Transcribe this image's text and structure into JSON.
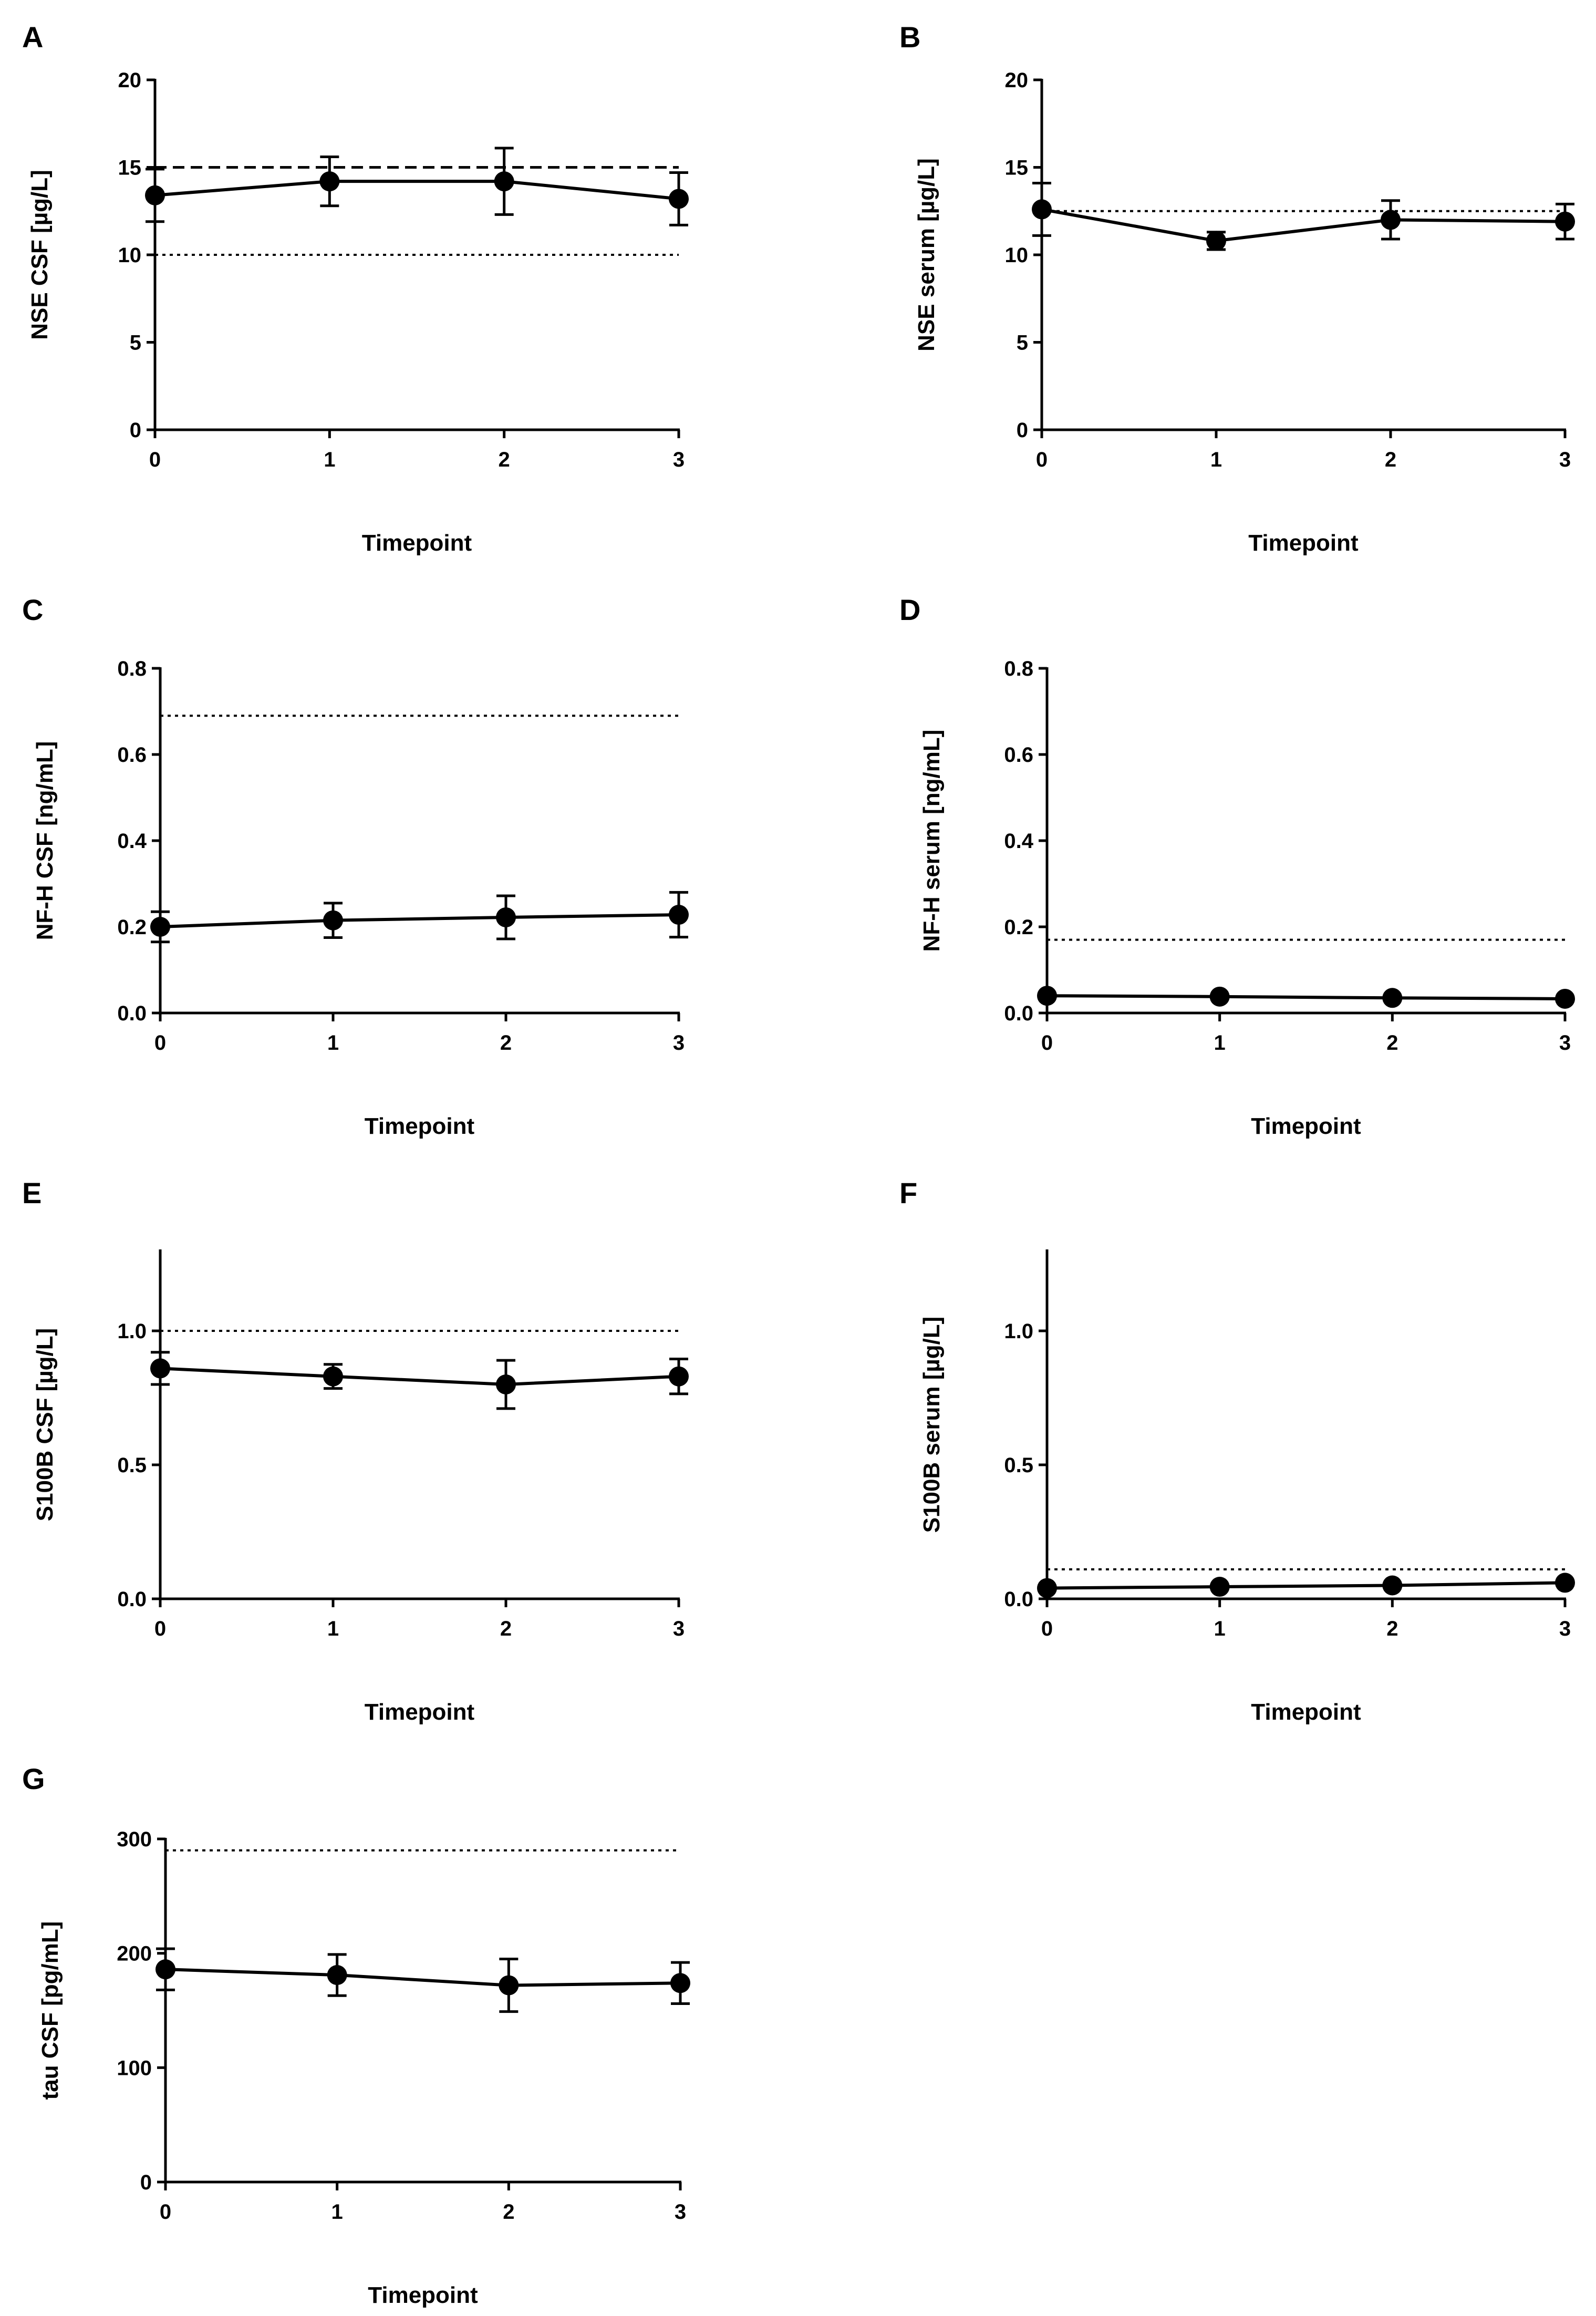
{
  "figure": {
    "background": "#ffffff",
    "ink": "#000000"
  },
  "chart_data": [
    {
      "panel": "A",
      "type": "line",
      "xlabel": "Timepoint",
      "ylabel": "NSE CSF [µg/L]",
      "x": [
        0,
        1,
        2,
        3
      ],
      "xticks": [
        "0",
        "1",
        "2",
        "3"
      ],
      "ylim": [
        0,
        20
      ],
      "yticks": [
        0,
        5,
        10,
        15,
        20
      ],
      "ytick_labels": [
        "0",
        "5",
        "10",
        "15",
        "20"
      ],
      "series": [
        {
          "values": [
            13.4,
            14.2,
            14.2,
            13.2
          ],
          "errors": [
            1.5,
            1.4,
            1.9,
            1.5
          ]
        }
      ],
      "reference_lines": [
        {
          "value": 15,
          "style": "dashed"
        },
        {
          "value": 10,
          "style": "dotted"
        }
      ],
      "grid": false,
      "legend": "none"
    },
    {
      "panel": "B",
      "type": "line",
      "xlabel": "Timepoint",
      "ylabel": "NSE serum [µg/L]",
      "x": [
        0,
        1,
        2,
        3
      ],
      "xticks": [
        "0",
        "1",
        "2",
        "3"
      ],
      "ylim": [
        0,
        20
      ],
      "yticks": [
        0,
        5,
        10,
        15,
        20
      ],
      "ytick_labels": [
        "0",
        "5",
        "10",
        "15",
        "20"
      ],
      "series": [
        {
          "values": [
            12.6,
            10.8,
            12.0,
            11.9
          ],
          "errors": [
            1.5,
            0.5,
            1.1,
            1.0
          ]
        }
      ],
      "reference_lines": [
        {
          "value": 12.5,
          "style": "dotted"
        }
      ],
      "grid": false,
      "legend": "none"
    },
    {
      "panel": "C",
      "type": "line",
      "xlabel": "Timepoint",
      "ylabel": "NF-H CSF [ng/mL]",
      "x": [
        0,
        1,
        2,
        3
      ],
      "xticks": [
        "0",
        "1",
        "2",
        "3"
      ],
      "ylim": [
        0,
        0.8
      ],
      "yticks": [
        0,
        0.2,
        0.4,
        0.6,
        0.8
      ],
      "ytick_labels": [
        "0.0",
        "0.2",
        "0.4",
        "0.6",
        "0.8"
      ],
      "series": [
        {
          "values": [
            0.2,
            0.215,
            0.222,
            0.228
          ],
          "errors": [
            0.035,
            0.04,
            0.05,
            0.052
          ]
        }
      ],
      "reference_lines": [
        {
          "value": 0.69,
          "style": "dotted"
        }
      ],
      "grid": false,
      "legend": "none"
    },
    {
      "panel": "D",
      "type": "line",
      "xlabel": "Timepoint",
      "ylabel": "NF-H serum [ng/mL]",
      "x": [
        0,
        1,
        2,
        3
      ],
      "xticks": [
        "0",
        "1",
        "2",
        "3"
      ],
      "ylim": [
        0,
        0.8
      ],
      "yticks": [
        0,
        0.2,
        0.4,
        0.6,
        0.8
      ],
      "ytick_labels": [
        "0.0",
        "0.2",
        "0.4",
        "0.6",
        "0.8"
      ],
      "series": [
        {
          "values": [
            0.04,
            0.038,
            0.035,
            0.033
          ],
          "errors": [
            0.004,
            0.004,
            0.004,
            0.004
          ]
        }
      ],
      "reference_lines": [
        {
          "value": 0.17,
          "style": "dotted"
        }
      ],
      "grid": false,
      "legend": "none"
    },
    {
      "panel": "E",
      "type": "line",
      "xlabel": "Timepoint",
      "ylabel": "S100B CSF [µg/L]",
      "x": [
        0,
        1,
        2,
        3
      ],
      "xticks": [
        "0",
        "1",
        "2",
        "3"
      ],
      "ylim": [
        0,
        1.3
      ],
      "yticks": [
        0,
        0.5,
        1.0
      ],
      "ytick_labels": [
        "0.0",
        "0.5",
        "1.0"
      ],
      "series": [
        {
          "values": [
            0.86,
            0.83,
            0.8,
            0.83
          ],
          "errors": [
            0.06,
            0.045,
            0.09,
            0.065
          ]
        }
      ],
      "reference_lines": [
        {
          "value": 1.0,
          "style": "dotted"
        }
      ],
      "grid": false,
      "legend": "none"
    },
    {
      "panel": "F",
      "type": "line",
      "xlabel": "Timepoint",
      "ylabel": "S100B serum [µg/L]",
      "x": [
        0,
        1,
        2,
        3
      ],
      "xticks": [
        "0",
        "1",
        "2",
        "3"
      ],
      "ylim": [
        0,
        1.3
      ],
      "yticks": [
        0,
        0.5,
        1.0
      ],
      "ytick_labels": [
        "0.0",
        "0.5",
        "1.0"
      ],
      "series": [
        {
          "values": [
            0.04,
            0.045,
            0.05,
            0.06
          ],
          "errors": [
            0.005,
            0.005,
            0.006,
            0.007
          ]
        }
      ],
      "reference_lines": [
        {
          "value": 0.11,
          "style": "dotted"
        }
      ],
      "grid": false,
      "legend": "none"
    },
    {
      "panel": "G",
      "type": "line",
      "xlabel": "Timepoint",
      "ylabel": "tau CSF [pg/mL]",
      "x": [
        0,
        1,
        2,
        3
      ],
      "xticks": [
        "0",
        "1",
        "2",
        "3"
      ],
      "ylim": [
        0,
        300
      ],
      "yticks": [
        0,
        100,
        200,
        300
      ],
      "ytick_labels": [
        "0",
        "100",
        "200",
        "300"
      ],
      "series": [
        {
          "values": [
            186,
            181,
            172,
            174
          ],
          "errors": [
            18,
            18,
            23,
            18
          ]
        }
      ],
      "reference_lines": [
        {
          "value": 290,
          "style": "dotted"
        }
      ],
      "grid": false,
      "legend": "none"
    }
  ]
}
